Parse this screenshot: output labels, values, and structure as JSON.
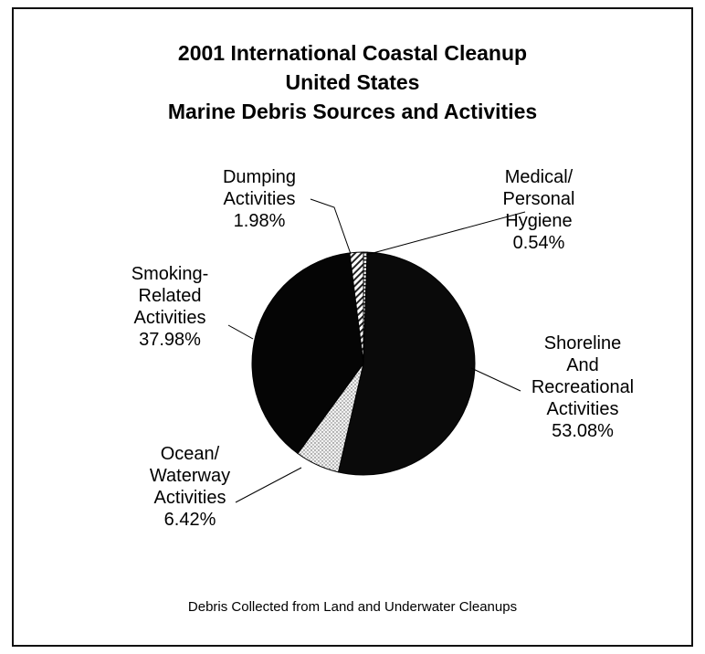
{
  "chart_data": {
    "type": "pie",
    "title": [
      "2001 International Coastal Cleanup",
      "United States",
      "Marine Debris Sources and Activities"
    ],
    "caption": "Debris Collected from Land and Underwater Cleanups",
    "slices": [
      {
        "label": [
          "Medical/",
          "Personal",
          "Hygiene"
        ],
        "value_label": "0.54%",
        "value": 0.54,
        "fill": "stripe-h",
        "color": "#ffffff"
      },
      {
        "label": [
          "Shoreline",
          "And",
          "Recreational",
          "Activities"
        ],
        "value_label": "53.08%",
        "value": 53.08,
        "fill": "solid",
        "color": "#0a0a0a"
      },
      {
        "label": [
          "Ocean/",
          "Waterway",
          "Activities"
        ],
        "value_label": "6.42%",
        "value": 6.42,
        "fill": "dots",
        "color": "#d9d9d9"
      },
      {
        "label": [
          "Smoking-",
          "Related",
          "Activities"
        ],
        "value_label": "37.98%",
        "value": 37.98,
        "fill": "solid",
        "color": "#050505"
      },
      {
        "label": [
          "Dumping",
          "Activities"
        ],
        "value_label": "1.98%",
        "value": 1.98,
        "fill": "stripe-diag",
        "color": "#ffffff"
      }
    ]
  }
}
